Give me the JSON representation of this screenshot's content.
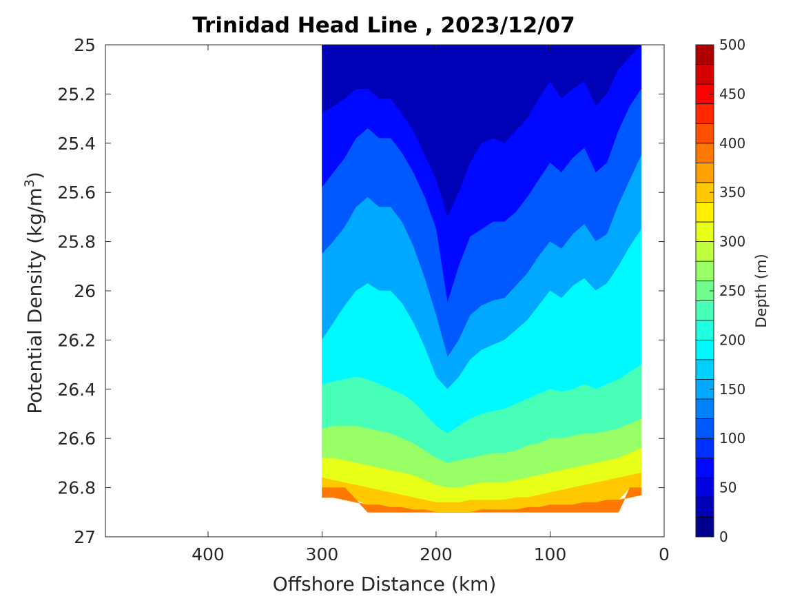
{
  "chart_data": {
    "type": "contourf",
    "title": "Trinidad Head Line , 2023/12/07",
    "xlabel": "Offshore Distance (km)",
    "ylabel_main": "Potential Density (kg/m",
    "ylabel_sup": "3",
    "ylabel_close": ")",
    "xlim": [
      490,
      0
    ],
    "x_reversed": true,
    "ylim": [
      25,
      27
    ],
    "y_reversed": true,
    "x_ticks": [
      400,
      300,
      200,
      100,
      0
    ],
    "x_tick_labels": [
      "400",
      "300",
      "200",
      "100",
      "0"
    ],
    "y_ticks": [
      25,
      25.2,
      25.4,
      25.6,
      25.8,
      26,
      26.2,
      26.4,
      26.6,
      26.8,
      27
    ],
    "y_tick_labels": [
      "25",
      "25.2",
      "25.4",
      "25.6",
      "25.8",
      "26",
      "26.2",
      "26.4",
      "26.6",
      "26.8",
      "27"
    ],
    "colorbar": {
      "label": "Depth (m)",
      "range": [
        0,
        500
      ],
      "levels": [
        0,
        25,
        50,
        75,
        100,
        125,
        150,
        175,
        200,
        225,
        250,
        275,
        300,
        325,
        350,
        375,
        400,
        425,
        450,
        475,
        500
      ],
      "tick_values": [
        0,
        50,
        100,
        150,
        200,
        250,
        300,
        350,
        400,
        450,
        500
      ],
      "tick_labels": [
        "0",
        "50",
        "100",
        "150",
        "200",
        "250",
        "300",
        "350",
        "400",
        "450",
        "500"
      ],
      "colors": [
        "#00008f",
        "#0000b7",
        "#0000df",
        "#0008ff",
        "#0030ff",
        "#0058ff",
        "#0080ff",
        "#00a8ff",
        "#00d0ff",
        "#00f8ff",
        "#20ffdf",
        "#48ffb7",
        "#70ff8f",
        "#98ff67",
        "#c0ff3f",
        "#e8ff17",
        "#ffef00",
        "#ffc800",
        "#ffa000",
        "#ff7800",
        "#ff5000",
        "#ff2800",
        "#ff0000",
        "#d70000",
        "#af0000"
      ]
    },
    "stations_x": [
      300,
      290,
      280,
      270,
      260,
      250,
      240,
      230,
      220,
      210,
      200,
      190,
      180,
      170,
      160,
      150,
      140,
      130,
      120,
      110,
      100,
      90,
      80,
      70,
      60,
      50,
      40,
      30,
      20
    ],
    "shallow_top_sigma": [
      25,
      25,
      25,
      25,
      25,
      25,
      25,
      25,
      25,
      25,
      25,
      25,
      25,
      25,
      25,
      25,
      25,
      25,
      25,
      25,
      25,
      25,
      25,
      25,
      25,
      25,
      25,
      25,
      25
    ],
    "deep_bottom_sigma": [
      26.8,
      26.8,
      26.8,
      26.85,
      26.9,
      26.9,
      26.9,
      26.9,
      26.9,
      26.9,
      26.9,
      26.9,
      26.9,
      26.9,
      26.9,
      26.9,
      26.9,
      26.9,
      26.9,
      26.9,
      26.9,
      26.9,
      26.9,
      26.9,
      26.9,
      26.9,
      26.9,
      26.8,
      26.8
    ],
    "contour_depths": [
      50,
      100,
      150,
      200,
      250,
      300,
      350,
      400,
      450
    ],
    "contour_sigma": [
      [
        25.28,
        25.25,
        25.22,
        25.18,
        25.18,
        25.22,
        25.22,
        25.28,
        25.35,
        25.45,
        25.55,
        25.7,
        25.6,
        25.48,
        25.4,
        25.38,
        25.4,
        25.35,
        25.3,
        25.22,
        25.15,
        25.22,
        25.18,
        25.15,
        25.25,
        25.2,
        25.1,
        25.05,
        25.0
      ],
      [
        25.58,
        25.52,
        25.46,
        25.38,
        25.34,
        25.38,
        25.38,
        25.44,
        25.52,
        25.62,
        25.75,
        26.05,
        25.9,
        25.78,
        25.75,
        25.72,
        25.72,
        25.68,
        25.62,
        25.55,
        25.48,
        25.52,
        25.46,
        25.42,
        25.52,
        25.48,
        25.35,
        25.25,
        25.18
      ],
      [
        25.85,
        25.8,
        25.74,
        25.66,
        25.62,
        25.66,
        25.66,
        25.72,
        25.82,
        25.95,
        26.1,
        26.27,
        26.2,
        26.1,
        26.06,
        26.04,
        26.03,
        25.98,
        25.93,
        25.86,
        25.8,
        25.83,
        25.77,
        25.73,
        25.8,
        25.77,
        25.65,
        25.55,
        25.45
      ],
      [
        26.2,
        26.13,
        26.06,
        26.0,
        25.97,
        26.0,
        26.0,
        26.05,
        26.13,
        26.23,
        26.35,
        26.4,
        26.35,
        26.28,
        26.24,
        26.22,
        26.2,
        26.16,
        26.12,
        26.06,
        26.0,
        26.03,
        25.98,
        25.95,
        26.0,
        25.97,
        25.9,
        25.82,
        25.75
      ],
      [
        26.38,
        26.37,
        26.36,
        26.35,
        26.36,
        26.38,
        26.4,
        26.42,
        26.45,
        26.5,
        26.55,
        26.58,
        26.55,
        26.52,
        26.5,
        26.49,
        26.48,
        26.46,
        26.44,
        26.42,
        26.4,
        26.41,
        26.4,
        26.38,
        26.4,
        26.38,
        26.36,
        26.33,
        26.3
      ],
      [
        26.56,
        26.55,
        26.55,
        26.55,
        26.56,
        26.57,
        26.58,
        26.6,
        26.62,
        26.65,
        26.68,
        26.7,
        26.69,
        26.68,
        26.67,
        26.66,
        26.66,
        26.65,
        26.63,
        26.62,
        26.6,
        26.6,
        26.59,
        26.58,
        26.58,
        26.57,
        26.56,
        26.54,
        26.52
      ],
      [
        26.68,
        26.68,
        26.69,
        26.7,
        26.71,
        26.72,
        26.73,
        26.74,
        26.75,
        26.77,
        26.79,
        26.8,
        26.8,
        26.79,
        26.78,
        26.78,
        26.78,
        26.77,
        26.76,
        26.75,
        26.74,
        26.73,
        26.72,
        26.71,
        26.7,
        26.69,
        26.68,
        26.66,
        26.64
      ],
      [
        26.76,
        26.77,
        26.78,
        26.79,
        26.8,
        26.81,
        26.82,
        26.83,
        26.84,
        26.85,
        26.86,
        26.86,
        26.86,
        26.85,
        26.85,
        26.85,
        26.85,
        26.84,
        26.84,
        26.83,
        26.82,
        26.81,
        26.8,
        26.79,
        26.78,
        26.77,
        26.76,
        26.75,
        26.74
      ],
      [
        26.84,
        26.84,
        26.85,
        26.86,
        26.87,
        26.87,
        26.88,
        26.88,
        26.89,
        26.89,
        26.9,
        26.9,
        26.9,
        26.9,
        26.89,
        26.89,
        26.89,
        26.89,
        26.88,
        26.88,
        26.87,
        26.87,
        26.87,
        26.86,
        26.86,
        26.85,
        26.85,
        26.84,
        26.83
      ]
    ]
  }
}
